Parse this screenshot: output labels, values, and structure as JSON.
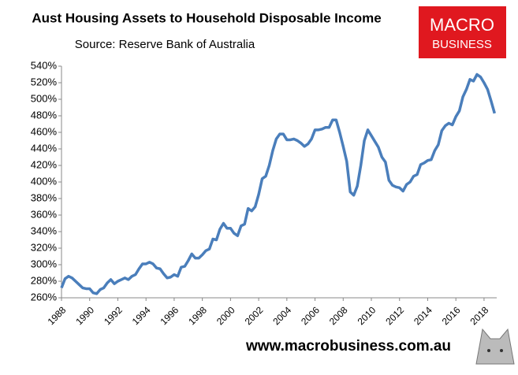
{
  "chart_data": {
    "type": "line",
    "title": "Aust Housing Assets to Household Disposable Income",
    "subtitle": "Source: Reserve Bank of Australia",
    "logo": [
      "MACRO",
      "BUSINESS"
    ],
    "website": "www.macrobusiness.com.au",
    "x": [
      1988,
      1988.25,
      1988.5,
      1988.75,
      1989,
      1989.25,
      1989.5,
      1989.75,
      1990,
      1990.25,
      1990.5,
      1990.75,
      1991,
      1991.25,
      1991.5,
      1991.75,
      1992,
      1992.25,
      1992.5,
      1992.75,
      1993,
      1993.25,
      1993.5,
      1993.75,
      1994,
      1994.25,
      1994.5,
      1994.75,
      1995,
      1995.25,
      1995.5,
      1995.75,
      1996,
      1996.25,
      1996.5,
      1996.75,
      1997,
      1997.25,
      1997.5,
      1997.75,
      1998,
      1998.25,
      1998.5,
      1998.75,
      1999,
      1999.25,
      1999.5,
      1999.75,
      2000,
      2000.25,
      2000.5,
      2000.75,
      2001,
      2001.25,
      2001.5,
      2001.75,
      2002,
      2002.25,
      2002.5,
      2002.75,
      2003,
      2003.25,
      2003.5,
      2003.75,
      2004,
      2004.25,
      2004.5,
      2004.75,
      2005,
      2005.25,
      2005.5,
      2005.75,
      2006,
      2006.25,
      2006.5,
      2006.75,
      2007,
      2007.25,
      2007.5,
      2007.75,
      2008,
      2008.25,
      2008.5,
      2008.75,
      2009,
      2009.25,
      2009.5,
      2009.75,
      2010,
      2010.25,
      2010.5,
      2010.75,
      2011,
      2011.25,
      2011.5,
      2011.75,
      2012,
      2012.25,
      2012.5,
      2012.75,
      2013,
      2013.25,
      2013.5,
      2013.75,
      2014,
      2014.25,
      2014.5,
      2014.75,
      2015,
      2015.25,
      2015.5,
      2015.75,
      2016,
      2016.25,
      2016.5,
      2016.75,
      2017,
      2017.25,
      2017.5,
      2017.75,
      2018,
      2018.25,
      2018.5,
      2018.75
    ],
    "series": [
      {
        "name": "Housing assets to disposable income",
        "color": "#4a7ebb",
        "values": [
          272,
          283,
          286,
          284,
          280,
          276,
          272,
          271,
          271,
          266,
          265,
          270,
          272,
          278,
          282,
          277,
          280,
          282,
          284,
          282,
          286,
          288,
          295,
          301,
          301,
          303,
          301,
          296,
          295,
          289,
          284,
          285,
          288,
          286,
          297,
          298,
          305,
          313,
          308,
          308,
          312,
          317,
          319,
          331,
          330,
          343,
          350,
          344,
          344,
          338,
          335,
          347,
          349,
          368,
          365,
          370,
          385,
          404,
          407,
          420,
          438,
          452,
          458,
          458,
          451,
          451,
          452,
          450,
          447,
          443,
          446,
          452,
          463,
          463,
          464,
          466,
          466,
          475,
          475,
          460,
          443,
          425,
          388,
          384,
          395,
          420,
          450,
          463,
          456,
          449,
          442,
          430,
          424,
          402,
          396,
          394,
          393,
          389,
          397,
          400,
          407,
          409,
          421,
          423,
          426,
          427,
          438,
          445,
          462,
          468,
          471,
          469,
          479,
          486,
          503,
          512,
          524,
          522,
          530,
          527,
          520,
          512,
          498,
          483
        ]
      }
    ],
    "xlim": [
      1988,
      2018.9
    ],
    "xticks": [
      1988,
      1990,
      1992,
      1994,
      1996,
      1998,
      2000,
      2002,
      2004,
      2006,
      2008,
      2010,
      2012,
      2014,
      2016,
      2018
    ],
    "ylim": [
      260,
      540
    ],
    "yticks": [
      {
        "value": 260,
        "label": "260%"
      },
      {
        "value": 280,
        "label": "280%"
      },
      {
        "value": 300,
        "label": "300%"
      },
      {
        "value": 320,
        "label": "320%"
      },
      {
        "value": 340,
        "label": "340%"
      },
      {
        "value": 360,
        "label": "360%"
      },
      {
        "value": 380,
        "label": "380%"
      },
      {
        "value": 400,
        "label": "400%"
      },
      {
        "value": 420,
        "label": "420%"
      },
      {
        "value": 440,
        "label": "440%"
      },
      {
        "value": 460,
        "label": "460%"
      },
      {
        "value": 480,
        "label": "480%"
      },
      {
        "value": 500,
        "label": "500%"
      },
      {
        "value": 520,
        "label": "520%"
      },
      {
        "value": 540,
        "label": "540%"
      }
    ],
    "grid": false
  }
}
